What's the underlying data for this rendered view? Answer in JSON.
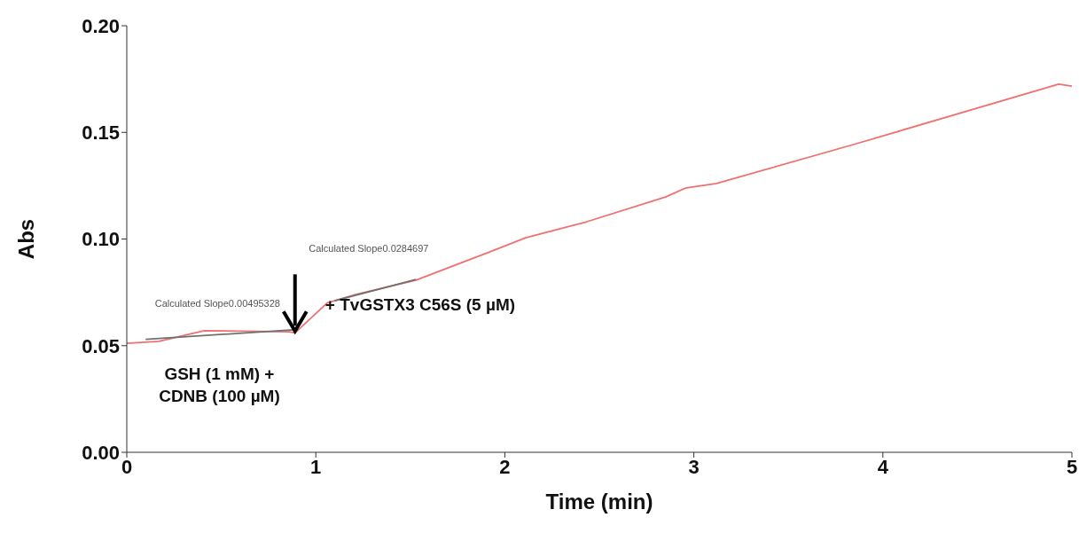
{
  "chart_data": {
    "type": "line",
    "xlabel": "Time (min)",
    "ylabel": "Abs",
    "xlim": [
      0,
      5
    ],
    "xticks": [
      0,
      1,
      2,
      3,
      4,
      5
    ],
    "ylim": [
      0,
      0.2
    ],
    "yticks": [
      {
        "value": 0,
        "label": "0.00"
      },
      {
        "value": 0.05,
        "label": "0.05"
      },
      {
        "value": 0.1,
        "label": "0.10"
      },
      {
        "value": 0.15,
        "label": "0.15"
      },
      {
        "value": 0.2,
        "label": "0.20"
      }
    ],
    "grid": false,
    "marker": "none",
    "line_style": "solid",
    "series": [
      {
        "color": "#f07070",
        "x": [
          0,
          0.17,
          0.41,
          0.6,
          0.86,
          0.89,
          1.06,
          1.21,
          1.53,
          1.91,
          2.11,
          2.43,
          2.85,
          2.96,
          3.12,
          3.86,
          4.93,
          5
        ],
        "values": [
          0.0511,
          0.052,
          0.057,
          0.0568,
          0.0565,
          0.056,
          0.07,
          0.074,
          0.0807,
          0.0936,
          0.1006,
          0.108,
          0.1197,
          0.124,
          0.126,
          0.1447,
          0.1726,
          0.1717
        ]
      },
      {
        "type": "line",
        "color": "#707070",
        "x": [
          0.1,
          0.9
        ],
        "values": [
          0.053,
          0.0575
        ]
      },
      {
        "type": "line",
        "color": "#707070",
        "x": [
          1.1,
          1.53
        ],
        "values": [
          0.071,
          0.081
        ]
      }
    ],
    "annotations": [
      "Calculated Slope0.00495328",
      "Calculated Slope0.0284697",
      "+ TvGSTX3 C56S (5 µM)",
      "GSH (1 mM) +\nCDNB (100 µM)"
    ]
  }
}
